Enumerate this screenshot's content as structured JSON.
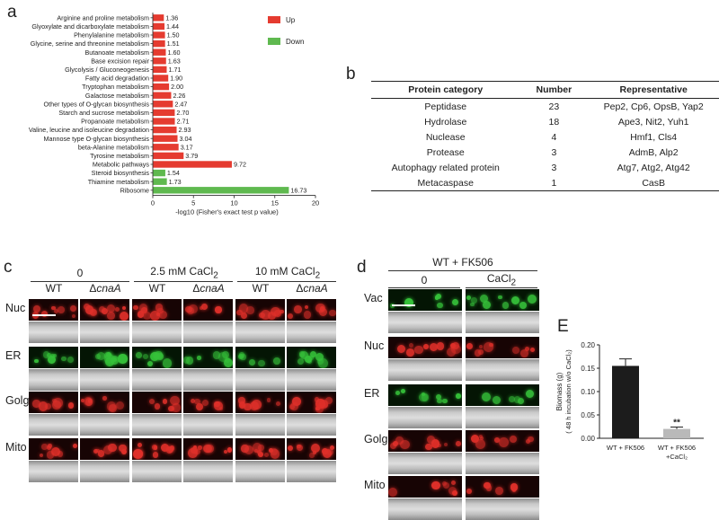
{
  "panels": {
    "a": "a",
    "b": "b",
    "c": "c",
    "d": "d",
    "e": "E"
  },
  "chart_data": [
    {
      "type": "bar",
      "orientation": "horizontal",
      "categories": [
        "Arginine and proline metabolism",
        "Glyoxylate and dicarboxylate metabolism",
        "Phenylalanine metabolism",
        "Glycine, serine and threonine metabolism",
        "Butanoate metabolism",
        "Base excision repair",
        "Glycolysis / Gluconeogenesis",
        "Fatty acid degradation",
        "Tryptophan metabolism",
        "Galactose metabolism",
        "Other types of O-glycan biosynthesis",
        "Starch and sucrose metabolism",
        "Propanoate metabolism",
        "Valine, leucine and isoleucine degradation",
        "Mannose type O-glycan biosynthesis",
        "beta-Alanine metabolism",
        "Tyrosine metabolism",
        "Metabolic pathways",
        "Steroid biosynthesis",
        "Thiamine metabolism",
        "Ribosome"
      ],
      "values": [
        1.36,
        1.44,
        1.5,
        1.51,
        1.6,
        1.63,
        1.71,
        1.9,
        2.0,
        2.26,
        2.47,
        2.7,
        2.71,
        2.93,
        3.04,
        3.17,
        3.79,
        9.72,
        1.54,
        1.73,
        16.73
      ],
      "value_labels": [
        "1.36",
        "1.44",
        "1.50",
        "1.51",
        "1.60",
        "1.63",
        "1.71",
        "1.90",
        "2.00",
        "2.26",
        "2.47",
        "2.70",
        "2.71",
        "2.93",
        "3.04",
        "3.17",
        "3.79",
        "9.72",
        "1.54",
        "1.73",
        "16.73"
      ],
      "groups": [
        "Up",
        "Up",
        "Up",
        "Up",
        "Up",
        "Up",
        "Up",
        "Up",
        "Up",
        "Up",
        "Up",
        "Up",
        "Up",
        "Up",
        "Up",
        "Up",
        "Up",
        "Up",
        "Down",
        "Down",
        "Down"
      ],
      "legend": [
        {
          "name": "Up",
          "color": "#e53b30"
        },
        {
          "name": "Down",
          "color": "#5fb94f"
        }
      ],
      "legend_position": "top-right",
      "xlabel": "-log10 (Fisher's exact  test p value)",
      "xlim": [
        0,
        20
      ],
      "xticks": [
        "0",
        "5",
        "10",
        "15",
        "20"
      ]
    },
    {
      "type": "bar",
      "categories": [
        "WT + FK506",
        "WT + FK506\n+CaCl₂"
      ],
      "category_lines": [
        [
          "WT + FK506"
        ],
        [
          "WT + FK506",
          "+CaCl₂"
        ]
      ],
      "values": [
        0.155,
        0.02
      ],
      "errors": [
        0.015,
        0.004
      ],
      "colors": [
        "#1c1c1c",
        "#b9b9b9"
      ],
      "significance": [
        "",
        "**"
      ],
      "ylabel": "Biomass (g)",
      "ylabel2": "( 48 h incubation w/o CaCl₂)",
      "ylim": [
        0,
        0.2
      ],
      "yticks": [
        "0.00",
        "0.05",
        "0.10",
        "0.15",
        "0.20"
      ]
    }
  ],
  "table": {
    "headers": [
      "Protein category",
      "Number",
      "Representative"
    ],
    "rows": [
      [
        "Peptidase",
        "23",
        "Pep2, Cp6, OpsB, Yap2"
      ],
      [
        "Hydrolase",
        "18",
        "Ape3, Nit2, Yuh1"
      ],
      [
        "Nuclease",
        "4",
        "Hmf1, Cls4"
      ],
      [
        "Protease",
        "3",
        "AdmB, Alp2"
      ],
      [
        "Autophagy related protein",
        "3",
        "Atg7, Atg2, Atg42"
      ],
      [
        "Metacaspase",
        "1",
        "CasB"
      ]
    ]
  },
  "panel_c": {
    "conditions": [
      "0",
      "2.5 mM CaCl₂",
      "10 mM CaCl₂"
    ],
    "strains": [
      "WT",
      "ΔcnaA",
      "WT",
      "ΔcnaA",
      "WT",
      "ΔcnaA"
    ],
    "rows": [
      "Nuc",
      "ER",
      "Golgi",
      "Mito"
    ]
  },
  "panel_d": {
    "title": "WT + FK506",
    "columns": [
      "0",
      "CaCl₂"
    ],
    "rows": [
      "Vac",
      "Nuc",
      "ER",
      "Golgi",
      "Mito"
    ]
  },
  "colors": {
    "up": "#e53b30",
    "down": "#5fb94f",
    "fluor_red": "#e0302a",
    "fluor_green": "#36c23a"
  }
}
